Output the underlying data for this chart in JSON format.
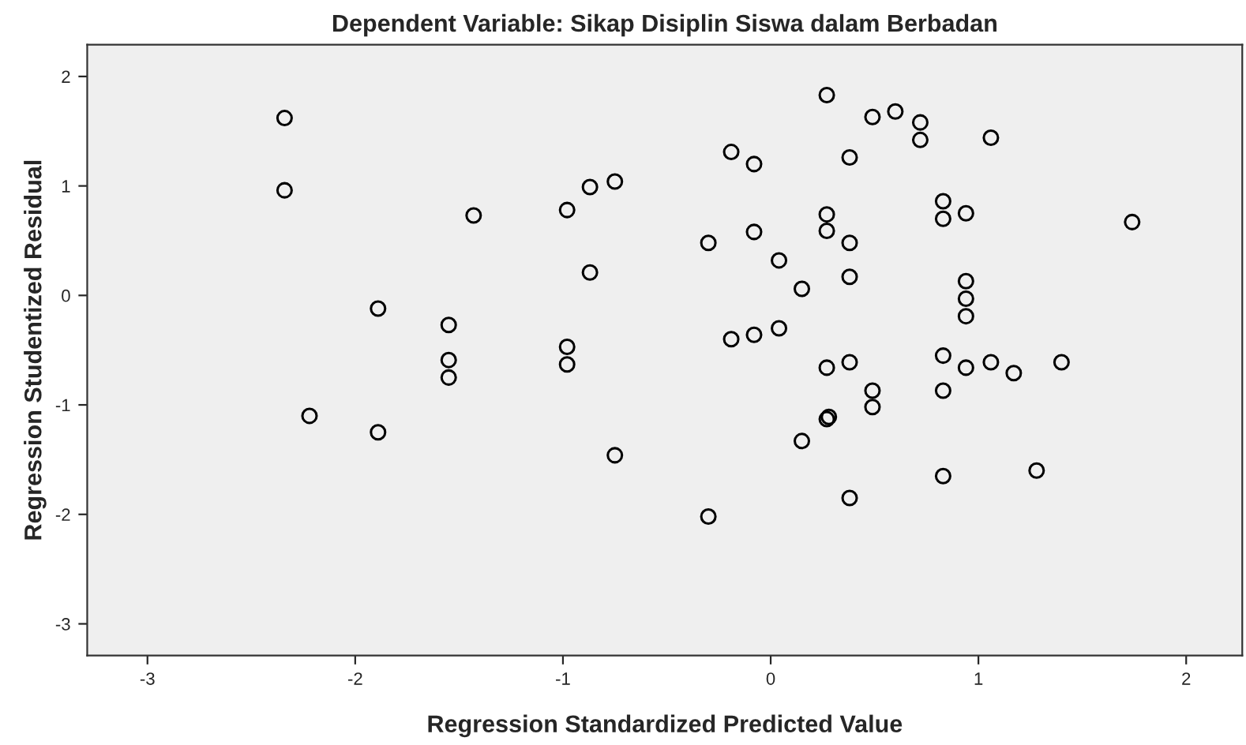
{
  "chart_data": {
    "type": "scatter",
    "title": "Dependent Variable: Sikap Disiplin Siswa dalam Berbadan",
    "xlabel": "Regression Standardized Predicted Value",
    "ylabel": "Regression Studentized Residual",
    "x": [
      -2.34,
      -2.34,
      -2.22,
      -1.89,
      -1.89,
      -1.55,
      -1.55,
      -1.55,
      -1.43,
      -0.98,
      -0.98,
      -0.98,
      -0.87,
      -0.87,
      -0.75,
      -0.75,
      0.27,
      0.49,
      0.6,
      0.72,
      0.72,
      1.06,
      -0.19,
      -0.08,
      0.38,
      0.83,
      0.83,
      0.94,
      1.74,
      0.27,
      0.27,
      -0.08,
      -0.3,
      0.38,
      0.04,
      0.38,
      0.15,
      0.94,
      0.94,
      0.94,
      -0.19,
      -0.08,
      0.04,
      0.27,
      0.38,
      0.83,
      0.94,
      1.06,
      1.17,
      1.4,
      0.49,
      0.49,
      0.83,
      0.27,
      0.28,
      0.15,
      0.83,
      1.28,
      0.38,
      -0.3
    ],
    "series": [
      {
        "color": "#000000",
        "values": [
          1.62,
          0.96,
          -1.1,
          -0.12,
          -1.25,
          -0.27,
          -0.59,
          -0.75,
          0.73,
          0.78,
          -0.47,
          -0.63,
          0.99,
          0.21,
          1.04,
          -1.46,
          1.83,
          1.63,
          1.68,
          1.58,
          1.42,
          1.44,
          1.31,
          1.2,
          1.26,
          0.86,
          0.7,
          0.75,
          0.67,
          0.74,
          0.59,
          0.58,
          0.48,
          0.48,
          0.32,
          0.17,
          0.06,
          0.13,
          -0.03,
          -0.19,
          -0.4,
          -0.36,
          -0.3,
          -0.66,
          -0.61,
          -0.55,
          -0.66,
          -0.61,
          -0.71,
          -0.61,
          -0.87,
          -1.02,
          -0.87,
          -1.13,
          -1.11,
          -1.33,
          -1.65,
          -1.6,
          -1.85,
          -2.02
        ]
      }
    ],
    "xlim": [
      -3.29,
      2.27
    ],
    "ylim": [
      -3.29,
      2.29
    ],
    "xticks": [
      -3,
      -2,
      -1,
      0,
      1,
      2
    ],
    "yticks": [
      -3,
      -2,
      -1,
      0,
      1,
      2
    ],
    "marker": "circle",
    "grid": false
  }
}
